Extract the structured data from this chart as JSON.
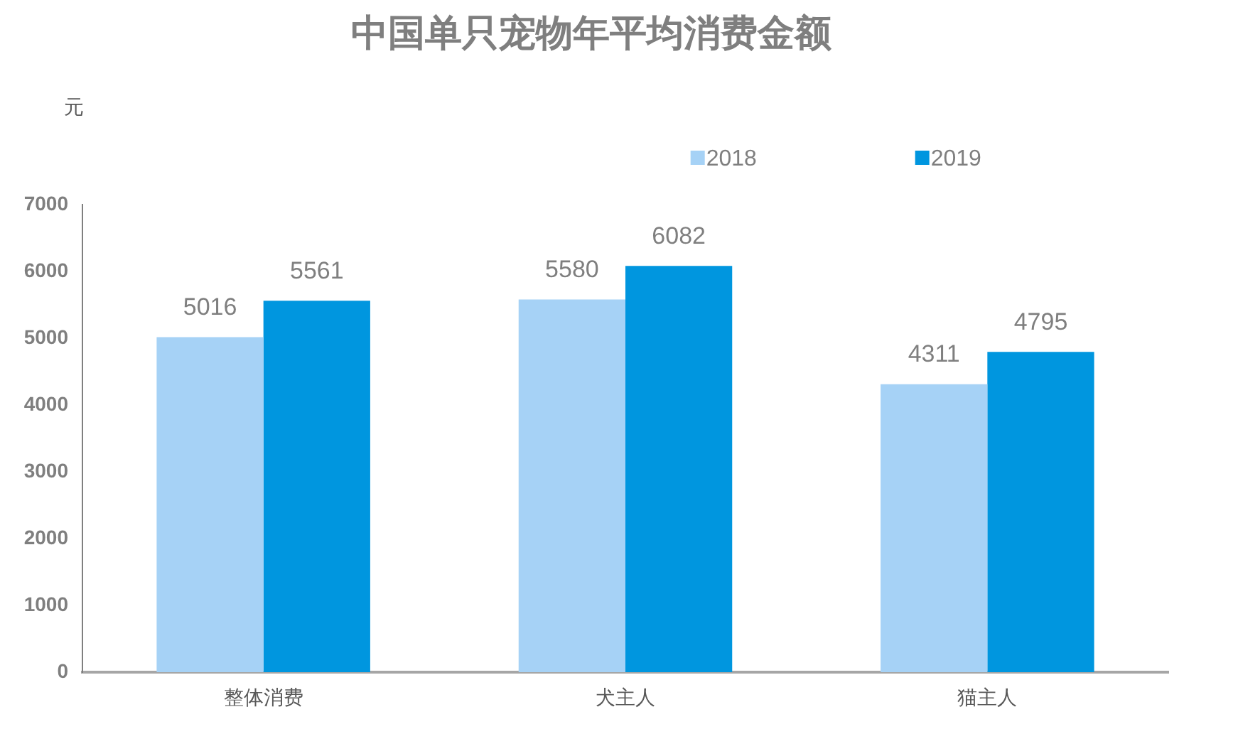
{
  "chart_data": {
    "type": "bar",
    "title": "中国单只宠物年平均消费金额",
    "ylabel": "元",
    "categories": [
      "整体消费",
      "犬主人",
      "猫主人"
    ],
    "series": [
      {
        "name": "2018",
        "color": "#a6d2f6",
        "values": [
          5016,
          5580,
          4311
        ]
      },
      {
        "name": "2019",
        "color": "#0096df",
        "values": [
          5561,
          6082,
          4795
        ]
      }
    ],
    "ylim": [
      0,
      7000
    ],
    "yticks": [
      0,
      1000,
      2000,
      3000,
      4000,
      5000,
      6000,
      7000
    ],
    "grid": false,
    "legend": "top right",
    "data_labels": true
  }
}
